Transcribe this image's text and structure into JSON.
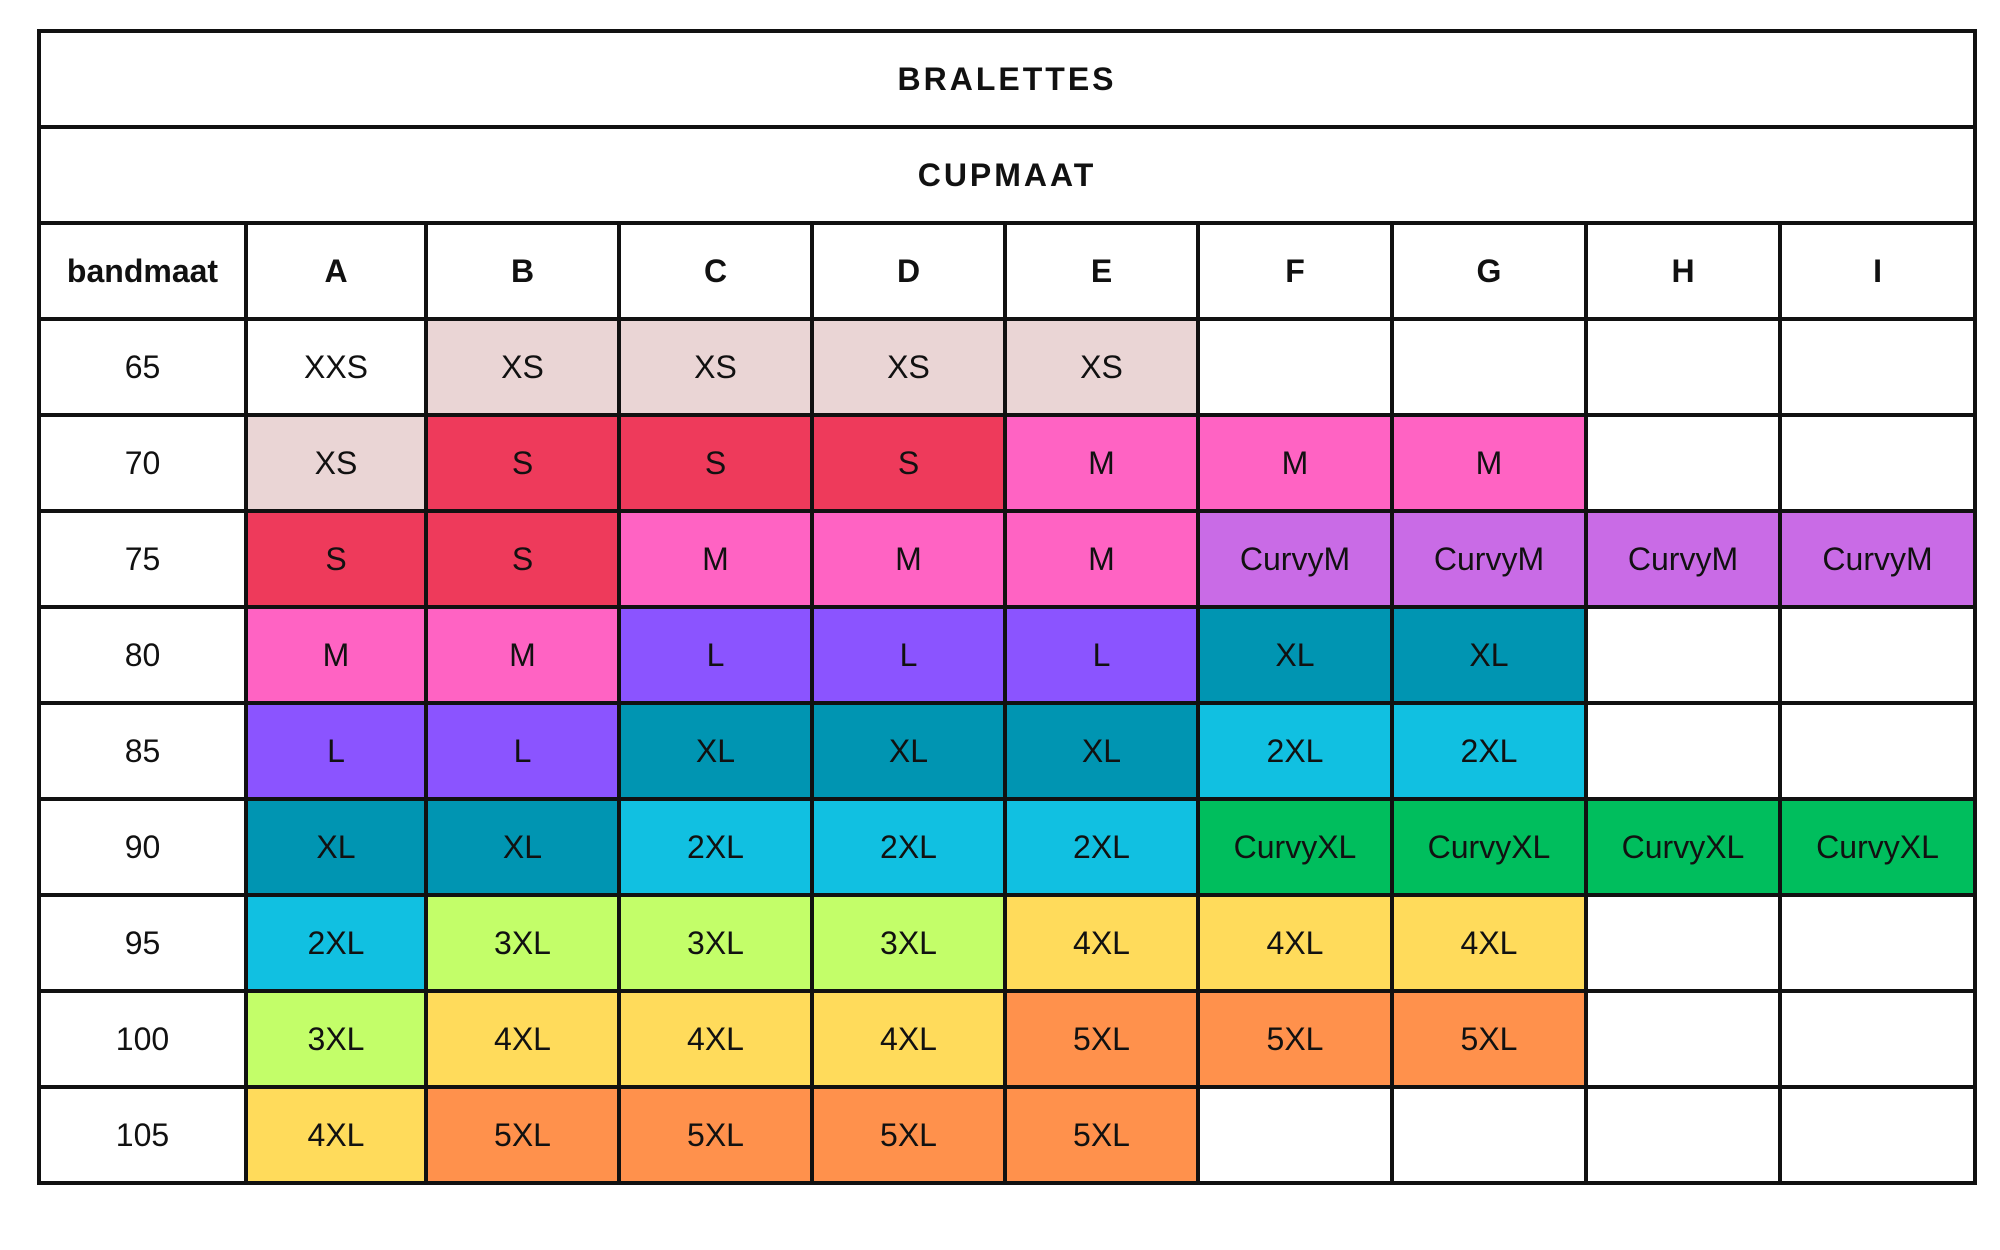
{
  "title": "BRALETTES",
  "subtitle": "CUPMAAT",
  "band_header": "bandmaat",
  "cups": [
    "A",
    "B",
    "C",
    "D",
    "E",
    "F",
    "G",
    "H",
    "I"
  ],
  "size_colors": {
    "XXS": "#ffffff",
    "XS": "#ead5d5",
    "S": "#ee3a5b",
    "M": "#ff63c3",
    "CurvyM": "#c96be6",
    "L": "#8b54ff",
    "XL": "#0095b2",
    "2XL": "#11c0e1",
    "CurvyXL": "#00be5d",
    "3XL": "#c3fe69",
    "4XL": "#ffdb5b",
    "5XL": "#ff914c"
  },
  "rows": [
    {
      "band": "65",
      "sizes": [
        "XXS",
        "XS",
        "XS",
        "XS",
        "XS",
        "",
        "",
        "",
        ""
      ]
    },
    {
      "band": "70",
      "sizes": [
        "XS",
        "S",
        "S",
        "S",
        "M",
        "M",
        "M",
        "",
        ""
      ]
    },
    {
      "band": "75",
      "sizes": [
        "S",
        "S",
        "M",
        "M",
        "M",
        "CurvyM",
        "CurvyM",
        "CurvyM",
        "CurvyM"
      ]
    },
    {
      "band": "80",
      "sizes": [
        "M",
        "M",
        "L",
        "L",
        "L",
        "XL",
        "XL",
        "",
        ""
      ]
    },
    {
      "band": "85",
      "sizes": [
        "L",
        "L",
        "XL",
        "XL",
        "XL",
        "2XL",
        "2XL",
        "",
        ""
      ]
    },
    {
      "band": "90",
      "sizes": [
        "XL",
        "XL",
        "2XL",
        "2XL",
        "2XL",
        "CurvyXL",
        "CurvyXL",
        "CurvyXL",
        "CurvyXL"
      ]
    },
    {
      "band": "95",
      "sizes": [
        "2XL",
        "3XL",
        "3XL",
        "3XL",
        "4XL",
        "4XL",
        "4XL",
        "",
        ""
      ]
    },
    {
      "band": "100",
      "sizes": [
        "3XL",
        "4XL",
        "4XL",
        "4XL",
        "5XL",
        "5XL",
        "5XL",
        "",
        ""
      ]
    },
    {
      "band": "105",
      "sizes": [
        "4XL",
        "5XL",
        "5XL",
        "5XL",
        "5XL",
        "",
        "",
        "",
        ""
      ]
    }
  ]
}
